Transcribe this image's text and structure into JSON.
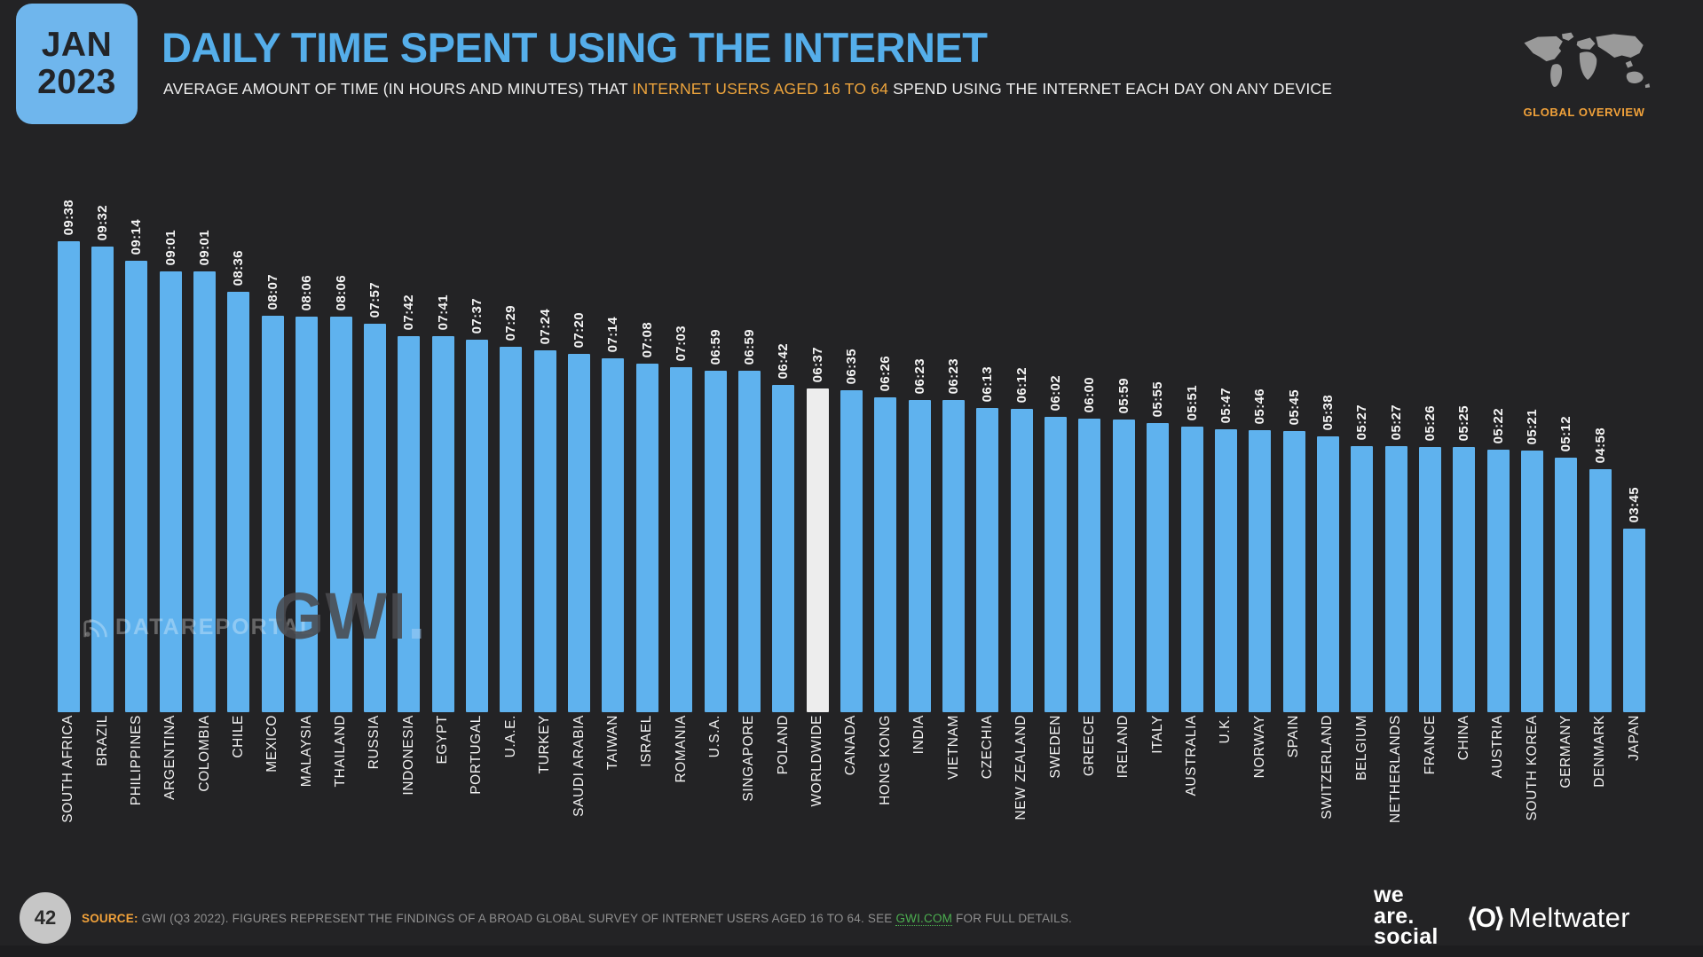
{
  "badge": {
    "month": "JAN",
    "year": "2023"
  },
  "header": {
    "title": "DAILY TIME SPENT USING THE INTERNET",
    "subtitle_prefix": "AVERAGE AMOUNT OF TIME (IN HOURS AND MINUTES) THAT ",
    "subtitle_highlight": "INTERNET USERS AGED 16 TO 64",
    "subtitle_suffix": " SPEND USING THE INTERNET EACH DAY ON ANY DEVICE",
    "overview_label": "GLOBAL OVERVIEW"
  },
  "watermarks": {
    "datareportal": "DATAREPORTAL",
    "gwi_text": "GWI",
    "gwi_dot": "."
  },
  "chart_data": {
    "type": "bar",
    "title": "DAILY TIME SPENT USING THE INTERNET",
    "unit": "hours:minutes per day",
    "categories": [
      "SOUTH AFRICA",
      "BRAZIL",
      "PHILIPPINES",
      "ARGENTINA",
      "COLOMBIA",
      "CHILE",
      "MEXICO",
      "MALAYSIA",
      "THAILAND",
      "RUSSIA",
      "INDONESIA",
      "EGYPT",
      "PORTUGAL",
      "U.A.E.",
      "TURKEY",
      "SAUDI ARABIA",
      "TAIWAN",
      "ISRAEL",
      "ROMANIA",
      "U.S.A.",
      "SINGAPORE",
      "POLAND",
      "WORLDWIDE",
      "CANADA",
      "HONG KONG",
      "INDIA",
      "VIETNAM",
      "CZECHIA",
      "NEW ZEALAND",
      "SWEDEN",
      "GREECE",
      "IRELAND",
      "ITALY",
      "AUSTRALIA",
      "U.K.",
      "NORWAY",
      "SPAIN",
      "SWITZERLAND",
      "BELGIUM",
      "NETHERLANDS",
      "FRANCE",
      "CHINA",
      "AUSTRIA",
      "SOUTH KOREA",
      "GERMANY",
      "DENMARK",
      "JAPAN"
    ],
    "values": [
      "09:38",
      "09:32",
      "09:14",
      "09:01",
      "09:01",
      "08:36",
      "08:07",
      "08:06",
      "08:06",
      "07:57",
      "07:42",
      "07:41",
      "07:37",
      "07:29",
      "07:24",
      "07:20",
      "07:14",
      "07:08",
      "07:03",
      "06:59",
      "06:59",
      "06:42",
      "06:37",
      "06:35",
      "06:26",
      "06:23",
      "06:23",
      "06:13",
      "06:12",
      "06:02",
      "06:00",
      "05:59",
      "05:55",
      "05:51",
      "05:47",
      "05:46",
      "05:45",
      "05:38",
      "05:27",
      "05:27",
      "05:26",
      "05:25",
      "05:22",
      "05:21",
      "05:12",
      "04:58",
      "03:45"
    ],
    "highlight_category": "WORLDWIDE",
    "bar_color": "#5fb2ee",
    "highlight_color": "#ededed",
    "value_label_color": "#f5f5f5",
    "ylim_minutes": [
      0,
      578
    ],
    "grid": false,
    "legend": false
  },
  "footer": {
    "page_number": "42",
    "source_label": "SOURCE:",
    "source_text": " GWI (Q3 2022). FIGURES REPRESENT THE FINDINGS OF A BROAD GLOBAL SURVEY OF INTERNET USERS AGED 16 TO 64. SEE ",
    "source_link": "GWI.COM",
    "source_suffix": " FOR FULL DETAILS.",
    "logo_we_are_social": {
      "line1": "we",
      "line2": "are.",
      "line3": "social"
    },
    "logo_meltwater_symbol": "⟨O⟩",
    "logo_meltwater": "Meltwater"
  }
}
